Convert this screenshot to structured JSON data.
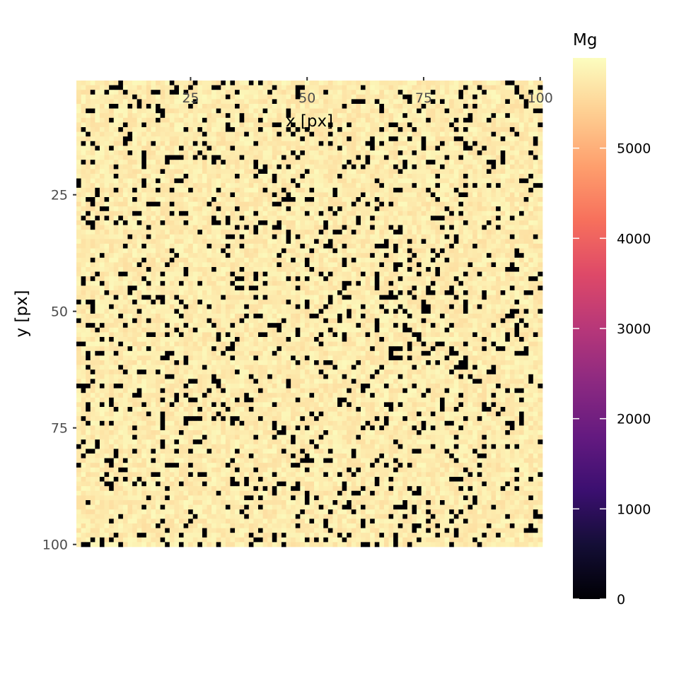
{
  "chart_data": {
    "type": "heatmap",
    "xlabel": "x [px]",
    "ylabel": "y [px]",
    "x_range": [
      1,
      100
    ],
    "y_range": [
      1,
      100
    ],
    "x_axis_position": "top",
    "y_axis_reversed": true,
    "x_ticks": [
      25,
      50,
      75,
      100
    ],
    "y_ticks": [
      25,
      50,
      75,
      100
    ],
    "grid": false,
    "colorbar": {
      "title": "Mg",
      "min": 0,
      "max": 6000,
      "ticks": [
        0,
        1000,
        2000,
        3000,
        4000,
        5000
      ],
      "palette": "magma",
      "stops": [
        "#000004",
        "#140E36",
        "#3B0F70",
        "#641A80",
        "#8C2981",
        "#B73779",
        "#DE4968",
        "#F7705C",
        "#FE9F6D",
        "#FECF92",
        "#FCFDBF"
      ]
    },
    "cell_summary": {
      "typical_value_range": [
        5600,
        5950
      ],
      "zero_value_fraction": 0.13,
      "zero_value": 0
    },
    "legend_placement": "right"
  }
}
